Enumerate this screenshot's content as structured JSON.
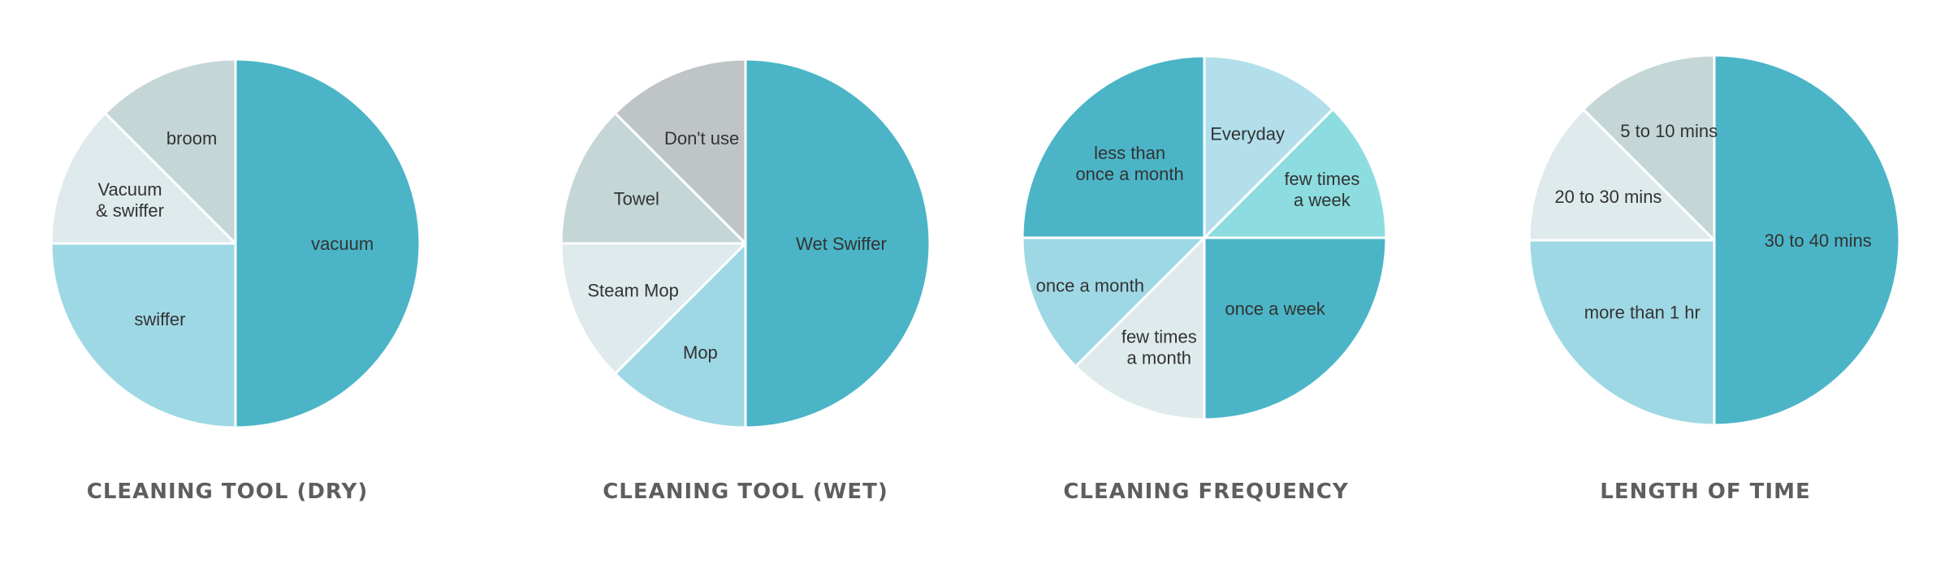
{
  "colors": {
    "teal_dark": "#4bb5c7",
    "teal_light": "#9fd8e5",
    "pale_gray": "#dfeaec",
    "gray_green": "#c5d6d7",
    "gray": "#bfc4c7",
    "pale_blue": "#b2dfeb",
    "aqua": "#8ddde0",
    "title": "#5e5e5e",
    "label": "#333333"
  },
  "chart_data": [
    {
      "type": "pie",
      "title": "CLEANING TOOL (DRY)",
      "start": "12 o'clock",
      "direction": "clockwise",
      "slices": [
        {
          "label": [
            "vacuum"
          ],
          "value": 50,
          "color": "#4bb5c7"
        },
        {
          "label": [
            "swiffer"
          ],
          "value": 25,
          "color": "#9fd8e5"
        },
        {
          "label": [
            "Vacuum",
            "& swiffer"
          ],
          "value": 12.5,
          "color": "#dfeaec"
        },
        {
          "label": [
            "broom"
          ],
          "value": 12.5,
          "color": "#c5d6d7"
        }
      ]
    },
    {
      "type": "pie",
      "title": "CLEANING TOOL (WET)",
      "start": "12 o'clock",
      "direction": "clockwise",
      "slices": [
        {
          "label": [
            "Wet Swiffer"
          ],
          "value": 50,
          "color": "#4bb5c7"
        },
        {
          "label": [
            "Mop"
          ],
          "value": 12.5,
          "color": "#9fd8e5"
        },
        {
          "label": [
            "Steam Mop"
          ],
          "value": 12.5,
          "color": "#dfeaec"
        },
        {
          "label": [
            "Towel"
          ],
          "value": 12.5,
          "color": "#c5d6d7"
        },
        {
          "label": [
            "Don't use"
          ],
          "value": 12.5,
          "color": "#bfc4c7"
        }
      ]
    },
    {
      "type": "pie",
      "title": "CLEANING FREQUENCY",
      "start": "12 o'clock",
      "direction": "clockwise",
      "slices": [
        {
          "label": [
            "Everyday"
          ],
          "value": 12.5,
          "color": "#b2dfeb"
        },
        {
          "label": [
            "few times",
            "a week"
          ],
          "value": 12.5,
          "color": "#8ddde0"
        },
        {
          "label": [
            "once a week"
          ],
          "value": 25,
          "color": "#4bb5c7"
        },
        {
          "label": [
            "few times",
            "a month"
          ],
          "value": 12.5,
          "color": "#dfeaec"
        },
        {
          "label": [
            "once a month"
          ],
          "value": 12.5,
          "color": "#9fd8e5"
        },
        {
          "label": [
            "less than",
            "once a month"
          ],
          "value": 25,
          "color": "#4bb5c7"
        }
      ]
    },
    {
      "type": "pie",
      "title": "LENGTH OF TIME",
      "start": "12 o'clock",
      "direction": "clockwise",
      "slices": [
        {
          "label": [
            "30 to 40 mins"
          ],
          "value": 50,
          "color": "#4bb5c7"
        },
        {
          "label": [
            "more than 1 hr"
          ],
          "value": 25,
          "color": "#9fd8e5"
        },
        {
          "label": [
            "20 to 30 mins"
          ],
          "value": 12.5,
          "color": "#dfeaec"
        },
        {
          "label": [
            "5 to 10 mins"
          ],
          "value": 12.5,
          "color": "#c5d6d7"
        }
      ]
    }
  ]
}
